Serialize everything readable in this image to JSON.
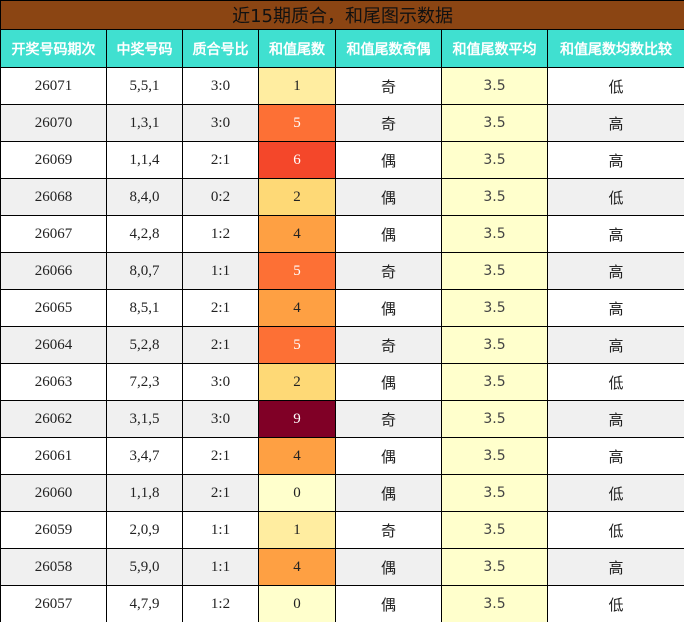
{
  "title": "近15期质合，和尾图示数据",
  "headers": [
    "开奖号码期次",
    "中奖号码",
    "质合号比",
    "和值尾数",
    "和值尾数奇偶",
    "和值尾数平均",
    "和值尾数均数比较"
  ],
  "tail_colors": {
    "0": "#ffffcc",
    "1": "#ffeda0",
    "2": "#fed976",
    "4": "#fea043",
    "5": "#fd7035",
    "6": "#f4472a",
    "9": "#800026"
  },
  "rows": [
    [
      "26071",
      "5,5,1",
      "3:0",
      "1",
      "奇",
      "3.5",
      "低"
    ],
    [
      "26070",
      "1,3,1",
      "3:0",
      "5",
      "奇",
      "3.5",
      "高"
    ],
    [
      "26069",
      "1,1,4",
      "2:1",
      "6",
      "偶",
      "3.5",
      "高"
    ],
    [
      "26068",
      "8,4,0",
      "0:2",
      "2",
      "偶",
      "3.5",
      "低"
    ],
    [
      "26067",
      "4,2,8",
      "1:2",
      "4",
      "偶",
      "3.5",
      "高"
    ],
    [
      "26066",
      "8,0,7",
      "1:1",
      "5",
      "奇",
      "3.5",
      "高"
    ],
    [
      "26065",
      "8,5,1",
      "2:1",
      "4",
      "偶",
      "3.5",
      "高"
    ],
    [
      "26064",
      "5,2,8",
      "2:1",
      "5",
      "奇",
      "3.5",
      "高"
    ],
    [
      "26063",
      "7,2,3",
      "3:0",
      "2",
      "偶",
      "3.5",
      "低"
    ],
    [
      "26062",
      "3,1,5",
      "3:0",
      "9",
      "奇",
      "3.5",
      "高"
    ],
    [
      "26061",
      "3,4,7",
      "2:1",
      "4",
      "偶",
      "3.5",
      "高"
    ],
    [
      "26060",
      "1,1,8",
      "2:1",
      "0",
      "偶",
      "3.5",
      "低"
    ],
    [
      "26059",
      "2,0,9",
      "1:1",
      "1",
      "奇",
      "3.5",
      "低"
    ],
    [
      "26058",
      "5,9,0",
      "1:1",
      "4",
      "偶",
      "3.5",
      "高"
    ],
    [
      "26057",
      "4,7,9",
      "1:2",
      "0",
      "偶",
      "3.5",
      "低"
    ]
  ]
}
